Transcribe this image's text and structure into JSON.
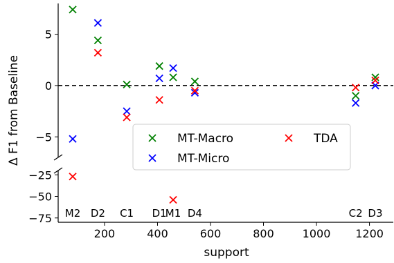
{
  "chart_data": {
    "type": "scatter",
    "xlabel": "support",
    "ylabel": "Δ F1 from Baseline",
    "x_ticks": [
      200,
      400,
      600,
      800,
      1000,
      1200
    ],
    "xlim": [
      25,
      1290
    ],
    "broken_y_axis": true,
    "upper_ylim": [
      -7,
      8
    ],
    "upper_y_ticks": [
      5,
      0,
      -5
    ],
    "lower_ylim": [
      -80,
      -20
    ],
    "lower_y_ticks": [
      -25,
      -50,
      -75
    ],
    "baseline_y": 0,
    "legend_position": "center",
    "marker": "x",
    "series": [
      {
        "name": "MT-Macro",
        "color": "#008000",
        "points": [
          {
            "x": 80,
            "y": 7.4
          },
          {
            "x": 175,
            "y": 4.4
          },
          {
            "x": 284,
            "y": 0.1
          },
          {
            "x": 407,
            "y": 1.9
          },
          {
            "x": 459,
            "y": 0.8
          },
          {
            "x": 541,
            "y": 0.4
          },
          {
            "x": 1148,
            "y": -1.0
          },
          {
            "x": 1222,
            "y": 0.8
          }
        ]
      },
      {
        "name": "MT-Micro",
        "color": "#0000ff",
        "points": [
          {
            "x": 80,
            "y": -5.2
          },
          {
            "x": 175,
            "y": 6.1
          },
          {
            "x": 284,
            "y": -2.5
          },
          {
            "x": 407,
            "y": 0.7
          },
          {
            "x": 459,
            "y": 1.7
          },
          {
            "x": 541,
            "y": -0.7
          },
          {
            "x": 1148,
            "y": -1.7
          },
          {
            "x": 1222,
            "y": 0.0
          }
        ]
      },
      {
        "name": "TDA",
        "color": "#ff0000",
        "points": [
          {
            "x": 80,
            "y": -27
          },
          {
            "x": 175,
            "y": 3.2
          },
          {
            "x": 284,
            "y": -3.1
          },
          {
            "x": 407,
            "y": -1.4
          },
          {
            "x": 459,
            "y": -54
          },
          {
            "x": 541,
            "y": -0.5
          },
          {
            "x": 1148,
            "y": -0.2
          },
          {
            "x": 1222,
            "y": 0.5
          }
        ]
      }
    ],
    "annotations": [
      {
        "label": "M2",
        "x": 80
      },
      {
        "label": "D2",
        "x": 175
      },
      {
        "label": "C1",
        "x": 284
      },
      {
        "label": "D1",
        "x": 407
      },
      {
        "label": "M1",
        "x": 459
      },
      {
        "label": "D4",
        "x": 541
      },
      {
        "label": "C2",
        "x": 1148
      },
      {
        "label": "D3",
        "x": 1222
      }
    ]
  }
}
